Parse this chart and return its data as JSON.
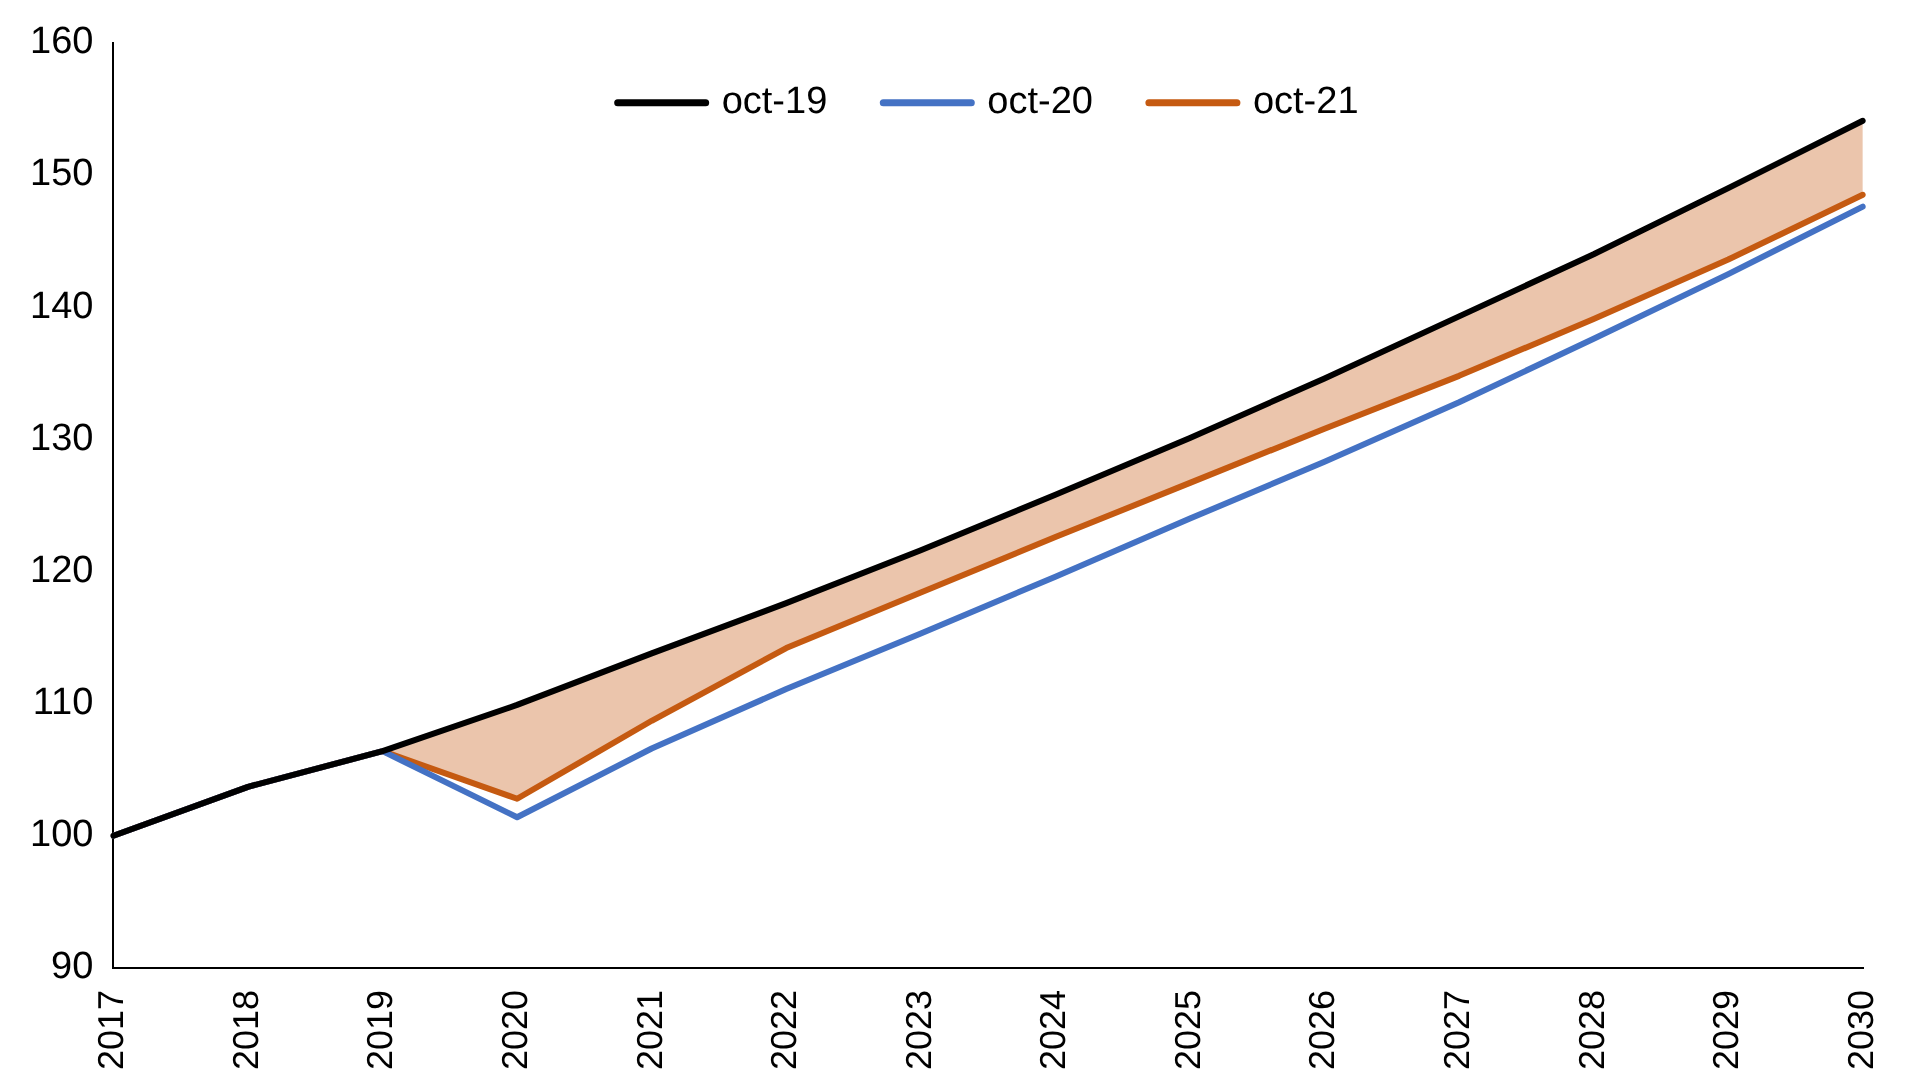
{
  "chart_data": {
    "type": "line",
    "categories": [
      "2017",
      "2018",
      "2019",
      "2020",
      "2021",
      "2022",
      "2023",
      "2024",
      "2025",
      "2026",
      "2027",
      "2028",
      "2029",
      "2030"
    ],
    "series": [
      {
        "name": "oct-19",
        "color": "#000000",
        "values": [
          100,
          103.7,
          106.4,
          109.9,
          113.8,
          117.6,
          121.6,
          125.8,
          130.1,
          134.6,
          139.3,
          144.0,
          149.0,
          154.1
        ]
      },
      {
        "name": "oct-20",
        "color": "#4472c4",
        "values": [
          100,
          103.7,
          106.4,
          101.4,
          106.6,
          111.1,
          115.3,
          119.6,
          124.0,
          128.3,
          132.8,
          137.6,
          142.5,
          147.6
        ]
      },
      {
        "name": "oct-21",
        "color": "#c55a11",
        "values": [
          100,
          103.7,
          106.4,
          102.8,
          108.7,
          114.2,
          118.4,
          122.6,
          126.7,
          130.8,
          134.8,
          139.1,
          143.6,
          148.5
        ],
        "lower": [
          null,
          null,
          106.4,
          102.8,
          108.7,
          114.2,
          118.4,
          122.6,
          126.7,
          130.8,
          134.8,
          139.1,
          143.6,
          148.5
        ],
        "upper": [
          null,
          null,
          106.4,
          109.9,
          113.8,
          117.6,
          121.6,
          125.8,
          130.1,
          134.6,
          139.3,
          144.0,
          149.0,
          154.1
        ]
      }
    ],
    "ylim": [
      90,
      160
    ],
    "yticks": [
      90,
      100,
      110,
      120,
      130,
      140,
      150,
      160
    ],
    "grid": false,
    "legend": "top",
    "marker": "none",
    "line_style": "solid"
  }
}
